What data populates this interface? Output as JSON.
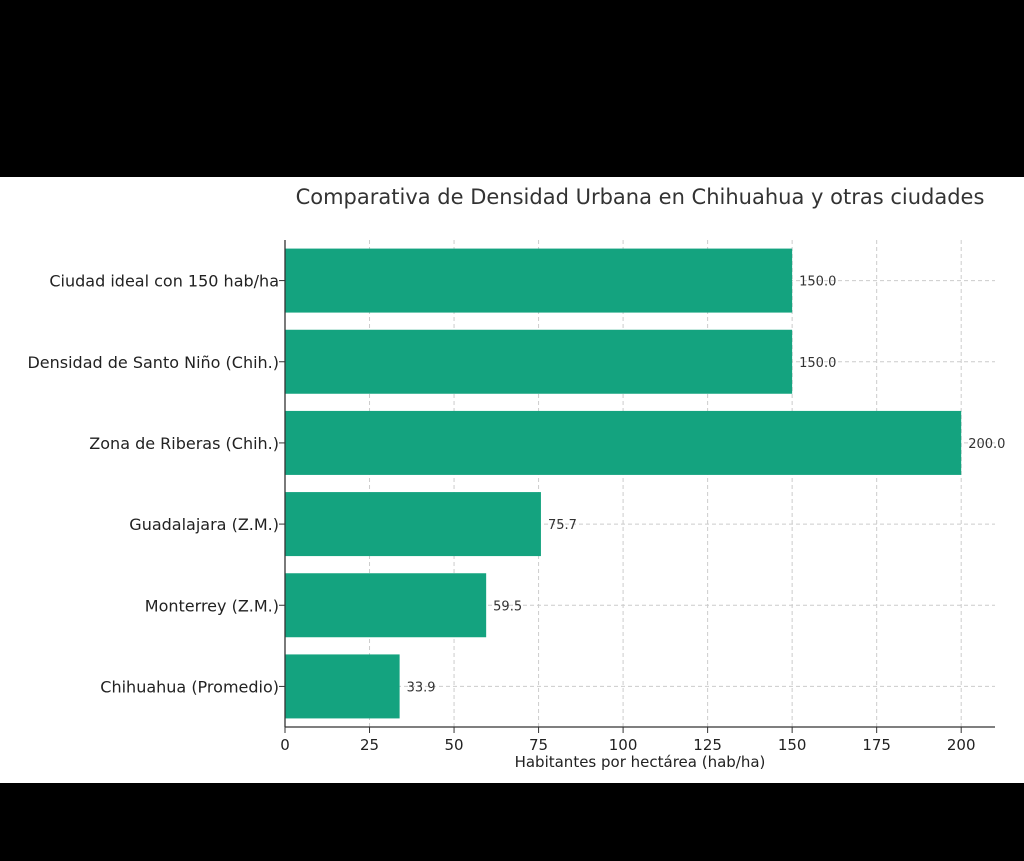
{
  "chart_data": {
    "type": "bar",
    "orientation": "horizontal",
    "title": "Comparativa de Densidad Urbana en Chihuahua y otras ciudades",
    "xlabel": "Habitantes por hectárea (hab/ha)",
    "ylabel": "",
    "categories": [
      "Ciudad ideal con 150 hab/ha",
      "Densidad de Santo Niño (Chih.)",
      "Zona de Riberas (Chih.)",
      "Guadalajara (Z.M.)",
      "Monterrey (Z.M.)",
      "Chihuahua (Promedio)"
    ],
    "values": [
      150.0,
      150.0,
      200.0,
      75.7,
      59.5,
      33.9
    ],
    "value_labels": [
      "150.0",
      "150.0",
      "200.0",
      "75.7",
      "59.5",
      "33.9"
    ],
    "xticks": [
      "0",
      "25",
      "50",
      "75",
      "100",
      "125",
      "150",
      "175",
      "200"
    ],
    "xlim": [
      0,
      210
    ],
    "grid": true,
    "bar_color": "#14a37f",
    "background_color": "#ffffff",
    "frame_color": "#000000"
  }
}
